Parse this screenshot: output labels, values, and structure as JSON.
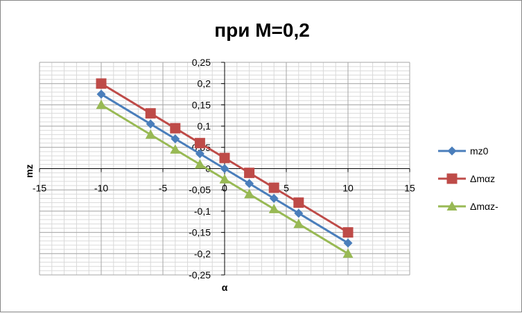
{
  "chart_data": {
    "type": "line",
    "title": "при М=0,2",
    "xlabel": "α",
    "ylabel": "mz",
    "xlim": [
      -15,
      15
    ],
    "ylim": [
      -0.25,
      0.25
    ],
    "x_ticks": [
      "-15",
      "-10",
      "-5",
      "0",
      "5",
      "10",
      "15"
    ],
    "y_ticks": [
      "-0,25",
      "-0,2",
      "-0,15",
      "-0,1",
      "-0,05",
      "0",
      "0,05",
      "0,1",
      "0,15",
      "0,2",
      "0,25"
    ],
    "x": [
      -10,
      -6,
      -4,
      -2,
      0,
      2,
      4,
      6,
      10
    ],
    "series": [
      {
        "name": "mz0",
        "color": "#4a7ebb",
        "marker": "diamond",
        "values": [
          0.175,
          0.105,
          0.07,
          0.035,
          0.0,
          -0.035,
          -0.07,
          -0.105,
          -0.175
        ]
      },
      {
        "name": "Δmαz",
        "color": "#be4b48",
        "marker": "square",
        "values": [
          0.2,
          0.13,
          0.095,
          0.06,
          0.025,
          -0.01,
          -0.045,
          -0.08,
          -0.15
        ]
      },
      {
        "name": "Δmαz-",
        "color": "#98b954",
        "marker": "triangle",
        "values": [
          0.15,
          0.08,
          0.045,
          0.01,
          -0.025,
          -0.06,
          -0.095,
          -0.13,
          -0.2
        ]
      }
    ],
    "grid": true,
    "legend_position": "right"
  }
}
